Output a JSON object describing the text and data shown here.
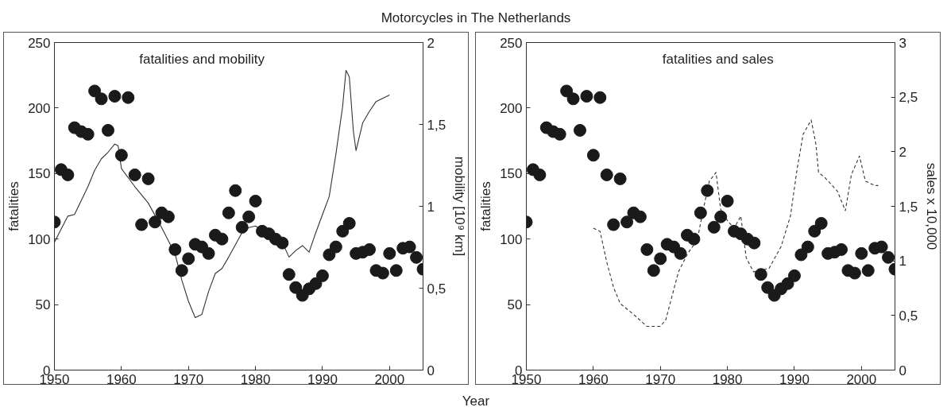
{
  "chart_data": [
    {
      "type": "scatter",
      "title": "Motorcycles in The Netherlands",
      "ylabel": "fatalities",
      "y2label": "mobility [10⁹ km]",
      "annotations": [
        "fatalities and mobility"
      ],
      "xlim": [
        1950,
        2005
      ],
      "xticks": [
        1950,
        1960,
        1970,
        1980,
        1990,
        2000
      ],
      "ylim": [
        0,
        250
      ],
      "yticks": [
        0,
        50,
        100,
        150,
        200,
        250
      ],
      "y2lim": [
        0,
        2
      ],
      "y2ticks": [
        0,
        {
          "value": 0.5,
          "label": "0,5"
        },
        1,
        {
          "value": 1.5,
          "label": "1,5"
        },
        2
      ],
      "grid": false,
      "series": [
        {
          "marker": "circle",
          "color": "#1a1a1a",
          "x": [
            1950,
            1951,
            1952,
            1953,
            1954,
            1955,
            1956,
            1957,
            1958,
            1959,
            1960,
            1961,
            1962,
            1963,
            1964,
            1965,
            1966,
            1967,
            1968,
            1969,
            1970,
            1971,
            1972,
            1973,
            1974,
            1975,
            1976,
            1977,
            1978,
            1979,
            1980,
            1981,
            1982,
            1983,
            1984,
            1985,
            1986,
            1987,
            1988,
            1989,
            1990,
            1991,
            1992,
            1993,
            1994,
            1995,
            1996,
            1997,
            1998,
            1999,
            2000,
            2001,
            2002,
            2003,
            2004,
            2005
          ],
          "values": [
            113,
            153,
            149,
            185,
            182,
            180,
            213,
            207,
            183,
            209,
            164,
            208,
            149,
            111,
            146,
            113,
            120,
            117,
            92,
            76,
            85,
            96,
            94,
            89,
            103,
            100,
            120,
            137,
            109,
            117,
            129,
            106,
            104,
            100,
            97,
            73,
            63,
            57,
            62,
            66,
            72,
            88,
            94,
            106,
            112,
            89,
            90,
            92,
            76,
            74,
            89,
            76,
            93,
            94,
            86,
            77
          ]
        },
        {
          "type": "line",
          "axis": "y2",
          "line_style": "solid",
          "color": "#333333",
          "x": [
            1950,
            1952,
            1953,
            1955,
            1956,
            1957,
            1958,
            1959,
            1959.5,
            1960,
            1962,
            1964,
            1966,
            1968,
            1969,
            1970,
            1971,
            1972,
            1973,
            1974,
            1975,
            1976,
            1978,
            1979,
            1980,
            1982,
            1984,
            1985,
            1986,
            1987,
            1988,
            1989,
            1990,
            1991,
            1992,
            1993,
            1993.5,
            1994,
            1994.6,
            1995,
            1996,
            1997,
            1998,
            2000
          ],
          "values": [
            0.78,
            0.94,
            0.95,
            1.12,
            1.22,
            1.29,
            1.33,
            1.38,
            1.37,
            1.23,
            1.12,
            1.02,
            0.87,
            0.71,
            0.55,
            0.42,
            0.32,
            0.34,
            0.48,
            0.59,
            0.62,
            0.69,
            0.84,
            0.87,
            0.88,
            0.83,
            0.78,
            0.69,
            0.73,
            0.76,
            0.72,
            0.84,
            0.95,
            1.06,
            1.32,
            1.61,
            1.83,
            1.79,
            1.46,
            1.34,
            1.51,
            1.58,
            1.64,
            1.68
          ]
        }
      ]
    },
    {
      "type": "scatter",
      "xlabel": "Year",
      "ylabel": "fatalities",
      "y2label": "sales x 10,000",
      "annotations": [
        "fatalities and sales"
      ],
      "xlim": [
        1950,
        2005
      ],
      "xticks": [
        1950,
        1960,
        1970,
        1980,
        1990,
        2000
      ],
      "ylim": [
        0,
        250
      ],
      "yticks": [
        0,
        50,
        100,
        150,
        200,
        250
      ],
      "y2lim": [
        0,
        3
      ],
      "y2ticks": [
        0,
        {
          "value": 0.5,
          "label": "0,5"
        },
        1,
        {
          "value": 1.5,
          "label": "1,5"
        },
        2,
        {
          "value": 2.5,
          "label": "2,5"
        },
        3
      ],
      "grid": false,
      "series": [
        {
          "marker": "circle",
          "color": "#1a1a1a",
          "x": [
            1950,
            1951,
            1952,
            1953,
            1954,
            1955,
            1956,
            1957,
            1958,
            1959,
            1960,
            1961,
            1962,
            1963,
            1964,
            1965,
            1966,
            1967,
            1968,
            1969,
            1970,
            1971,
            1972,
            1973,
            1974,
            1975,
            1976,
            1977,
            1978,
            1979,
            1980,
            1981,
            1982,
            1983,
            1984,
            1985,
            1986,
            1987,
            1988,
            1989,
            1990,
            1991,
            1992,
            1993,
            1994,
            1995,
            1996,
            1997,
            1998,
            1999,
            2000,
            2001,
            2002,
            2003,
            2004,
            2005
          ],
          "values": [
            113,
            153,
            149,
            185,
            182,
            180,
            213,
            207,
            183,
            209,
            164,
            208,
            149,
            111,
            146,
            113,
            120,
            117,
            92,
            76,
            85,
            96,
            94,
            89,
            103,
            100,
            120,
            137,
            109,
            117,
            129,
            106,
            104,
            100,
            97,
            73,
            63,
            57,
            62,
            66,
            72,
            88,
            94,
            106,
            112,
            89,
            90,
            92,
            76,
            74,
            89,
            76,
            93,
            94,
            86,
            77
          ]
        },
        {
          "type": "line",
          "axis": "y2",
          "line_style": "dashed",
          "color": "#333333",
          "x": [
            1960,
            1961,
            1962,
            1963,
            1964,
            1966,
            1968,
            1969,
            1970,
            1970.8,
            1972.7,
            1974.1,
            1975.5,
            1976.4,
            1977.3,
            1978.3,
            1979,
            1980.1,
            1981,
            1982,
            1982.8,
            1983.9,
            1986.2,
            1988,
            1989.4,
            1990.4,
            1991.3,
            1992.5,
            1993.2,
            1993.6,
            1994.6,
            1996.4,
            1997.6,
            1998.5,
            1999.7,
            2000.6,
            2002,
            2002.5
          ],
          "values": [
            1.3,
            1.27,
            0.99,
            0.76,
            0.61,
            0.51,
            0.4,
            0.4,
            0.4,
            0.46,
            0.9,
            1.07,
            1.19,
            1.47,
            1.73,
            1.81,
            1.47,
            1.36,
            1.3,
            1.41,
            1.03,
            0.9,
            0.93,
            1.13,
            1.41,
            1.84,
            2.16,
            2.29,
            2.07,
            1.81,
            1.76,
            1.64,
            1.46,
            1.79,
            1.96,
            1.73,
            1.69,
            1.69
          ]
        }
      ]
    }
  ]
}
